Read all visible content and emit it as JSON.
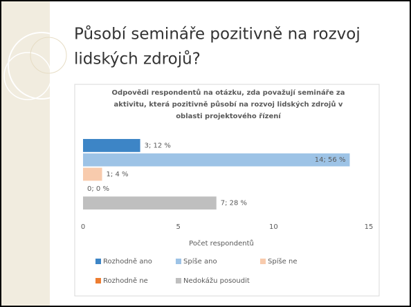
{
  "slide": {
    "title": [
      "Působí semináře pozitivně na rozvoj",
      "lidských zdrojů?"
    ]
  },
  "chart_data": {
    "type": "bar",
    "orientation": "horizontal",
    "title": [
      "Odpovědi respondentů na otázku, zda považují semináře za",
      "aktivitu, která pozitivně působí na rozvoj lidských zdrojů v",
      "oblasti projektového řízení"
    ],
    "categories": [
      "Rozhodně ano",
      "Spíše ano",
      "Spíše ne",
      "Rozhodně ne",
      "Nedokážu posoudit"
    ],
    "values": [
      3,
      14,
      1,
      0,
      7
    ],
    "value_labels": [
      "3; 12 %",
      "14; 56 %",
      "1; 4 %",
      "0; 0 %",
      "7; 28 %"
    ],
    "colors": [
      "#3d85c6",
      "#9dc3e6",
      "#f8cbad",
      "#ed7d31",
      "#bfbfbf"
    ],
    "xlabel": "Počet respondentů",
    "xlim": [
      0,
      15
    ],
    "xticks": [
      0,
      5,
      10,
      15
    ],
    "grid": false,
    "legend": "bottom"
  }
}
